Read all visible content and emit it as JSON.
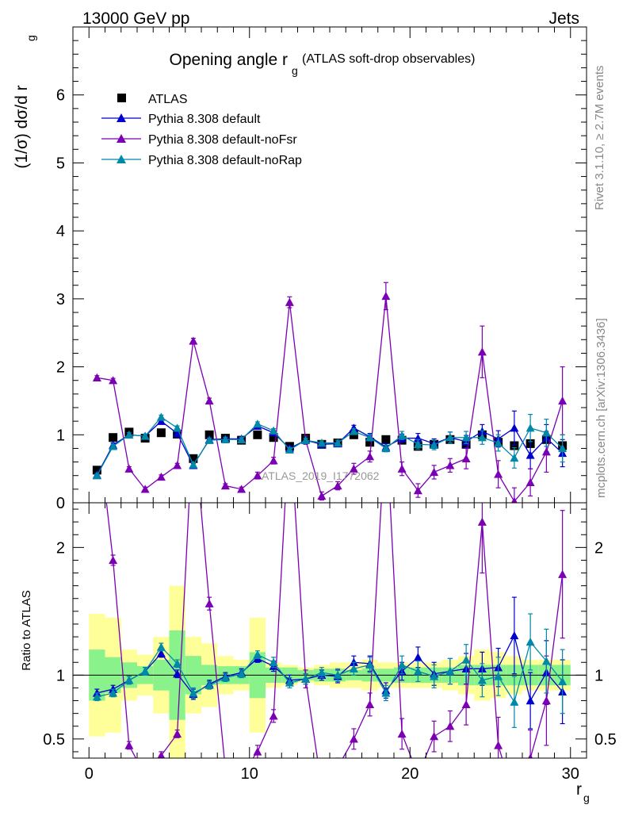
{
  "header": {
    "energy_label": "13000 GeV pp",
    "process_label": "Jets",
    "title_main": "Opening angle r",
    "title_sub": "g",
    "title_extra": "(ATLAS soft-drop observables)",
    "ylabel_main": "(1/σ) dσ/d r",
    "ylabel_sub": "g",
    "ratio_ylabel": "Ratio to ATLAS",
    "xlabel_main": "r",
    "xlabel_sub": "g",
    "analysis_id": "ATLAS_2019_I1772062",
    "rivet_label": "Rivet 3.1.10, ≥ 2.7M events",
    "mcplots_label": "mcplots.cern.ch [arXiv:1306.3436]"
  },
  "chart_data": {
    "type": "line",
    "xlim": [
      -1,
      31
    ],
    "main_ylim": [
      0,
      7
    ],
    "ratio_ylim": [
      0.35,
      2.35
    ],
    "main_yticks": [
      0,
      1,
      2,
      3,
      4,
      5,
      6
    ],
    "ratio_yticks": [
      0.5,
      1,
      2
    ],
    "xticks": [
      0,
      10,
      20,
      30
    ],
    "legend_position": "top-left",
    "colors": {
      "data": "#000000",
      "default": "#0000cc",
      "noFsr": "#7b00b3",
      "noRap": "#0088a8",
      "band_inner": "#8af28a",
      "band_outer": "#ffff99"
    },
    "x": [
      0.5,
      1.5,
      2.5,
      3.5,
      4.5,
      5.5,
      6.5,
      7.5,
      8.5,
      9.5,
      10.5,
      11.5,
      12.5,
      13.5,
      14.5,
      15.5,
      16.5,
      17.5,
      18.5,
      19.5,
      20.5,
      21.5,
      22.5,
      23.5,
      24.5,
      25.5,
      26.5,
      27.5,
      28.5,
      29.5
    ],
    "data_series": {
      "name": "ATLAS",
      "values": [
        0.48,
        0.96,
        1.04,
        0.95,
        1.03,
        1.01,
        0.65,
        1.0,
        0.95,
        0.92,
        1.0,
        0.96,
        0.83,
        0.95,
        0.86,
        0.88,
        1.0,
        0.89,
        0.93,
        0.92,
        0.83,
        0.86,
        0.93,
        0.86,
        1.0,
        0.89,
        0.84,
        0.87,
        0.93,
        0.84
      ],
      "inner_band": [
        0.2,
        0.14,
        0.1,
        0.07,
        0.12,
        0.35,
        0.15,
        0.08,
        0.07,
        0.07,
        0.18,
        0.06,
        0.06,
        0.04,
        0.05,
        0.05,
        0.04,
        0.05,
        0.05,
        0.06,
        0.06,
        0.06,
        0.06,
        0.08,
        0.08,
        0.08,
        0.08,
        0.08,
        0.08,
        0.08
      ],
      "outer_band": [
        0.48,
        0.45,
        0.2,
        0.16,
        0.3,
        0.7,
        0.3,
        0.25,
        0.15,
        0.12,
        0.45,
        0.1,
        0.08,
        0.06,
        0.08,
        0.1,
        0.1,
        0.12,
        0.1,
        0.1,
        0.1,
        0.1,
        0.12,
        0.15,
        0.2,
        0.18,
        0.15,
        0.12,
        0.12,
        0.12
      ]
    },
    "series": [
      {
        "name": "Pythia 8.308 default",
        "values": [
          0.41,
          0.85,
          1.0,
          0.98,
          1.2,
          1.02,
          0.55,
          0.93,
          0.94,
          0.94,
          1.13,
          1.03,
          0.8,
          0.92,
          0.86,
          0.87,
          1.1,
          0.97,
          0.82,
          0.95,
          0.95,
          0.87,
          0.96,
          0.9,
          1.05,
          0.94,
          1.1,
          0.7,
          0.95,
          0.73
        ],
        "errors": [
          0.03,
          0.03,
          0.03,
          0.03,
          0.03,
          0.03,
          0.03,
          0.03,
          0.03,
          0.03,
          0.03,
          0.03,
          0.03,
          0.03,
          0.03,
          0.04,
          0.04,
          0.05,
          0.05,
          0.06,
          0.07,
          0.07,
          0.08,
          0.09,
          0.1,
          0.12,
          0.25,
          0.2,
          0.2,
          0.2
        ],
        "ratio": [
          0.86,
          0.89,
          0.96,
          1.03,
          1.17,
          1.01,
          0.85,
          0.93,
          0.99,
          1.02,
          1.13,
          1.07,
          0.96,
          0.97,
          1.0,
          0.99,
          1.1,
          1.09,
          0.88,
          1.03,
          1.14,
          1.01,
          1.03,
          1.05,
          1.05,
          1.06,
          1.31,
          0.8,
          1.02,
          0.87
        ],
        "ratio_errors": [
          0.03,
          0.03,
          0.03,
          0.03,
          0.03,
          0.03,
          0.04,
          0.03,
          0.03,
          0.03,
          0.03,
          0.04,
          0.04,
          0.04,
          0.04,
          0.05,
          0.05,
          0.06,
          0.06,
          0.07,
          0.08,
          0.09,
          0.1,
          0.12,
          0.13,
          0.15,
          0.3,
          0.22,
          0.25,
          0.25
        ]
      },
      {
        "name": "Pythia 8.308 default-noFsr",
        "values": [
          1.84,
          1.8,
          0.5,
          0.2,
          0.38,
          0.55,
          2.38,
          1.5,
          0.25,
          0.2,
          0.4,
          0.62,
          2.95,
          0.92,
          0.1,
          0.25,
          0.5,
          0.68,
          3.04,
          0.5,
          0.18,
          0.45,
          0.55,
          0.65,
          2.22,
          0.42,
          0.02,
          0.3,
          0.75,
          1.5
        ],
        "errors": [
          0.03,
          0.03,
          0.03,
          0.03,
          0.03,
          0.03,
          0.04,
          0.04,
          0.03,
          0.03,
          0.05,
          0.05,
          0.08,
          0.06,
          0.06,
          0.06,
          0.08,
          0.08,
          0.2,
          0.1,
          0.1,
          0.1,
          0.1,
          0.15,
          0.38,
          0.2,
          0.2,
          0.2,
          0.3,
          0.5
        ],
        "ratio": [
          3.0,
          1.9,
          0.45,
          0.21,
          0.37,
          0.54,
          3.0,
          1.56,
          0.26,
          0.22,
          0.4,
          0.68,
          3.0,
          0.97,
          0.12,
          0.28,
          0.5,
          0.77,
          3.0,
          0.54,
          0.22,
          0.52,
          0.6,
          0.77,
          2.2,
          0.45,
          0.03,
          0.35,
          0.8,
          1.79
        ],
        "ratio_errors": [
          0.04,
          0.04,
          0.03,
          0.03,
          0.03,
          0.03,
          0.05,
          0.05,
          0.03,
          0.03,
          0.05,
          0.05,
          0.1,
          0.07,
          0.07,
          0.07,
          0.08,
          0.09,
          0.25,
          0.12,
          0.12,
          0.12,
          0.12,
          0.16,
          0.4,
          0.22,
          0.2,
          0.22,
          0.35,
          0.5
        ]
      },
      {
        "name": "Pythia 8.308 default-noRap",
        "values": [
          0.4,
          0.83,
          1.0,
          0.98,
          1.26,
          1.1,
          0.56,
          0.92,
          0.93,
          0.93,
          1.16,
          1.06,
          0.78,
          0.92,
          0.88,
          0.88,
          1.05,
          0.96,
          0.8,
          0.99,
          0.86,
          0.85,
          0.96,
          0.96,
          0.96,
          0.88,
          0.66,
          1.1,
          1.03,
          0.8
        ],
        "errors": [
          0.03,
          0.03,
          0.03,
          0.03,
          0.03,
          0.03,
          0.03,
          0.03,
          0.03,
          0.03,
          0.03,
          0.03,
          0.03,
          0.03,
          0.03,
          0.04,
          0.04,
          0.05,
          0.05,
          0.06,
          0.07,
          0.07,
          0.08,
          0.09,
          0.1,
          0.12,
          0.15,
          0.2,
          0.2,
          0.2
        ],
        "ratio": [
          0.83,
          0.86,
          0.96,
          1.03,
          1.22,
          1.09,
          0.86,
          0.92,
          0.98,
          1.01,
          1.16,
          1.1,
          0.94,
          0.97,
          1.02,
          1.0,
          1.05,
          1.08,
          0.86,
          1.08,
          1.03,
          0.99,
          1.03,
          1.12,
          0.96,
          0.99,
          0.79,
          1.26,
          1.11,
          0.95
        ],
        "ratio_errors": [
          0.03,
          0.03,
          0.03,
          0.03,
          0.03,
          0.03,
          0.04,
          0.03,
          0.03,
          0.03,
          0.03,
          0.04,
          0.04,
          0.04,
          0.04,
          0.05,
          0.05,
          0.06,
          0.06,
          0.07,
          0.08,
          0.09,
          0.1,
          0.12,
          0.13,
          0.15,
          0.2,
          0.22,
          0.25,
          0.25
        ]
      }
    ],
    "data_ratio": [
      1,
      1,
      1,
      1,
      1,
      1,
      1,
      1,
      1,
      1,
      1,
      1,
      1,
      1,
      1,
      1,
      1,
      1,
      1,
      1,
      1,
      1,
      1,
      1,
      1,
      1,
      1,
      1,
      1,
      1
    ]
  }
}
